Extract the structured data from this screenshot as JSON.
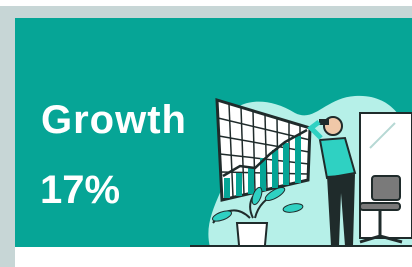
{
  "card": {
    "title": "Growth",
    "stat": "17%"
  }
}
